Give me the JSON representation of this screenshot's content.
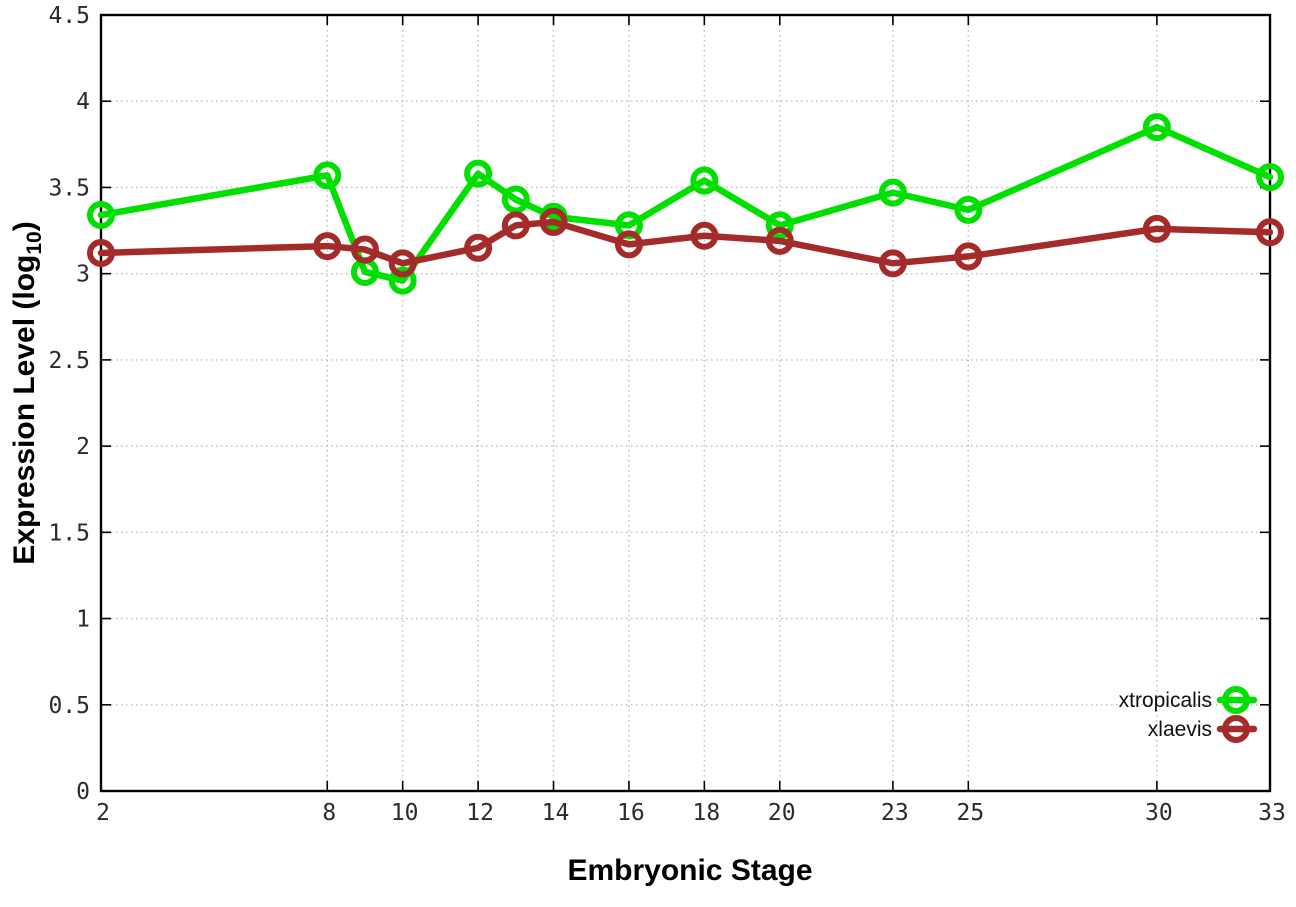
{
  "page": {
    "background_color": "#ffffff"
  },
  "chart_data": {
    "type": "line",
    "title": "",
    "xlabel": "Embryonic Stage",
    "ylabel": "Expression Level (log10)",
    "ylabel_parts": {
      "prefix": "Expression Level (log",
      "sub": "10",
      "suffix": ")"
    },
    "xlim": [
      2,
      33
    ],
    "ylim": [
      0,
      4.5
    ],
    "grid": true,
    "grid_style": "dotted",
    "legend_position": "bottom-right-inside",
    "marker": "open-circle",
    "x": [
      2,
      8,
      9,
      10,
      12,
      13,
      14,
      16,
      18,
      20,
      23,
      25,
      30,
      33
    ],
    "x_ticks": [
      {
        "value": 2,
        "label": "2"
      },
      {
        "value": 8,
        "label": "8"
      },
      {
        "value": 10,
        "label": "10"
      },
      {
        "value": 12,
        "label": "12"
      },
      {
        "value": 14,
        "label": "14"
      },
      {
        "value": 16,
        "label": "16"
      },
      {
        "value": 18,
        "label": "18"
      },
      {
        "value": 20,
        "label": "20"
      },
      {
        "value": 23,
        "label": "23"
      },
      {
        "value": 25,
        "label": "25"
      },
      {
        "value": 30,
        "label": "30"
      },
      {
        "value": 33,
        "label": "33"
      }
    ],
    "y_ticks": [
      {
        "value": 0,
        "label": "0"
      },
      {
        "value": 0.5,
        "label": "0.5"
      },
      {
        "value": 1,
        "label": "1"
      },
      {
        "value": 1.5,
        "label": "1.5"
      },
      {
        "value": 2,
        "label": "2"
      },
      {
        "value": 2.5,
        "label": "2.5"
      },
      {
        "value": 3,
        "label": "3"
      },
      {
        "value": 3.5,
        "label": "3.5"
      },
      {
        "value": 4,
        "label": "4"
      },
      {
        "value": 4.5,
        "label": "4.5"
      }
    ],
    "series": [
      {
        "name": "xtropicalis",
        "color": "#00e000",
        "values": [
          3.34,
          3.57,
          3.01,
          2.96,
          3.58,
          3.43,
          3.33,
          3.28,
          3.54,
          3.28,
          3.47,
          3.37,
          3.85,
          3.56
        ]
      },
      {
        "name": "xlaevis",
        "color": "#a52a2a",
        "values": [
          3.12,
          3.16,
          3.14,
          3.06,
          3.15,
          3.28,
          3.3,
          3.17,
          3.22,
          3.19,
          3.06,
          3.1,
          3.26,
          3.24
        ]
      }
    ],
    "style_colors": {
      "grid": "#bdbdbd",
      "axis": "#000000",
      "tick_label": "#2b2b2b"
    }
  }
}
